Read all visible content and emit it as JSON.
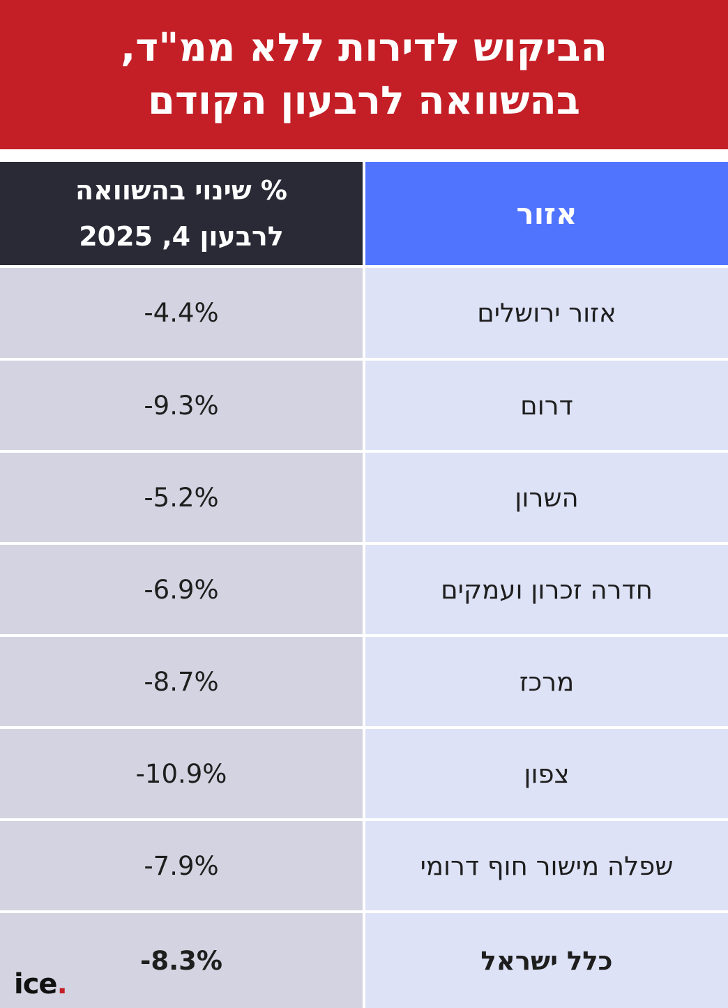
{
  "title": {
    "line1": "הביקוש לדירות ללא ממ\"ד,",
    "line2": "בהשוואה לרבעון הקודם"
  },
  "chart_data": {
    "type": "table",
    "columns": {
      "region": "אזור",
      "change_line1": "% שינוי בהשוואה",
      "change_line2": "לרבעון 4, 2025"
    },
    "rows": [
      {
        "region": "אזור ירושלים",
        "change": "-4.4%",
        "value": -4.4
      },
      {
        "region": "דרום",
        "change": "-9.3%",
        "value": -9.3
      },
      {
        "region": "השרון",
        "change": "-5.2%",
        "value": -5.2
      },
      {
        "region": "חדרה זכרון ועמקים",
        "change": "-6.9%",
        "value": -6.9
      },
      {
        "region": "מרכז",
        "change": "-8.7%",
        "value": -8.7
      },
      {
        "region": "צפון",
        "change": "-10.9%",
        "value": -10.9
      },
      {
        "region": "שפלה מישור חוף דרומי",
        "change": "-7.9%",
        "value": -7.9
      }
    ],
    "total": {
      "region": "כלל ישראל",
      "change": "-8.3%",
      "value": -8.3
    }
  },
  "logo": {
    "text": "ice",
    "dot": "."
  },
  "colors": {
    "title_bg": "#c41f27",
    "header_value_bg": "#2a2a37",
    "header_region_bg": "#5174ff",
    "value_cell_bg": "#d3d3e1",
    "region_cell_bg": "#dde2f6"
  }
}
